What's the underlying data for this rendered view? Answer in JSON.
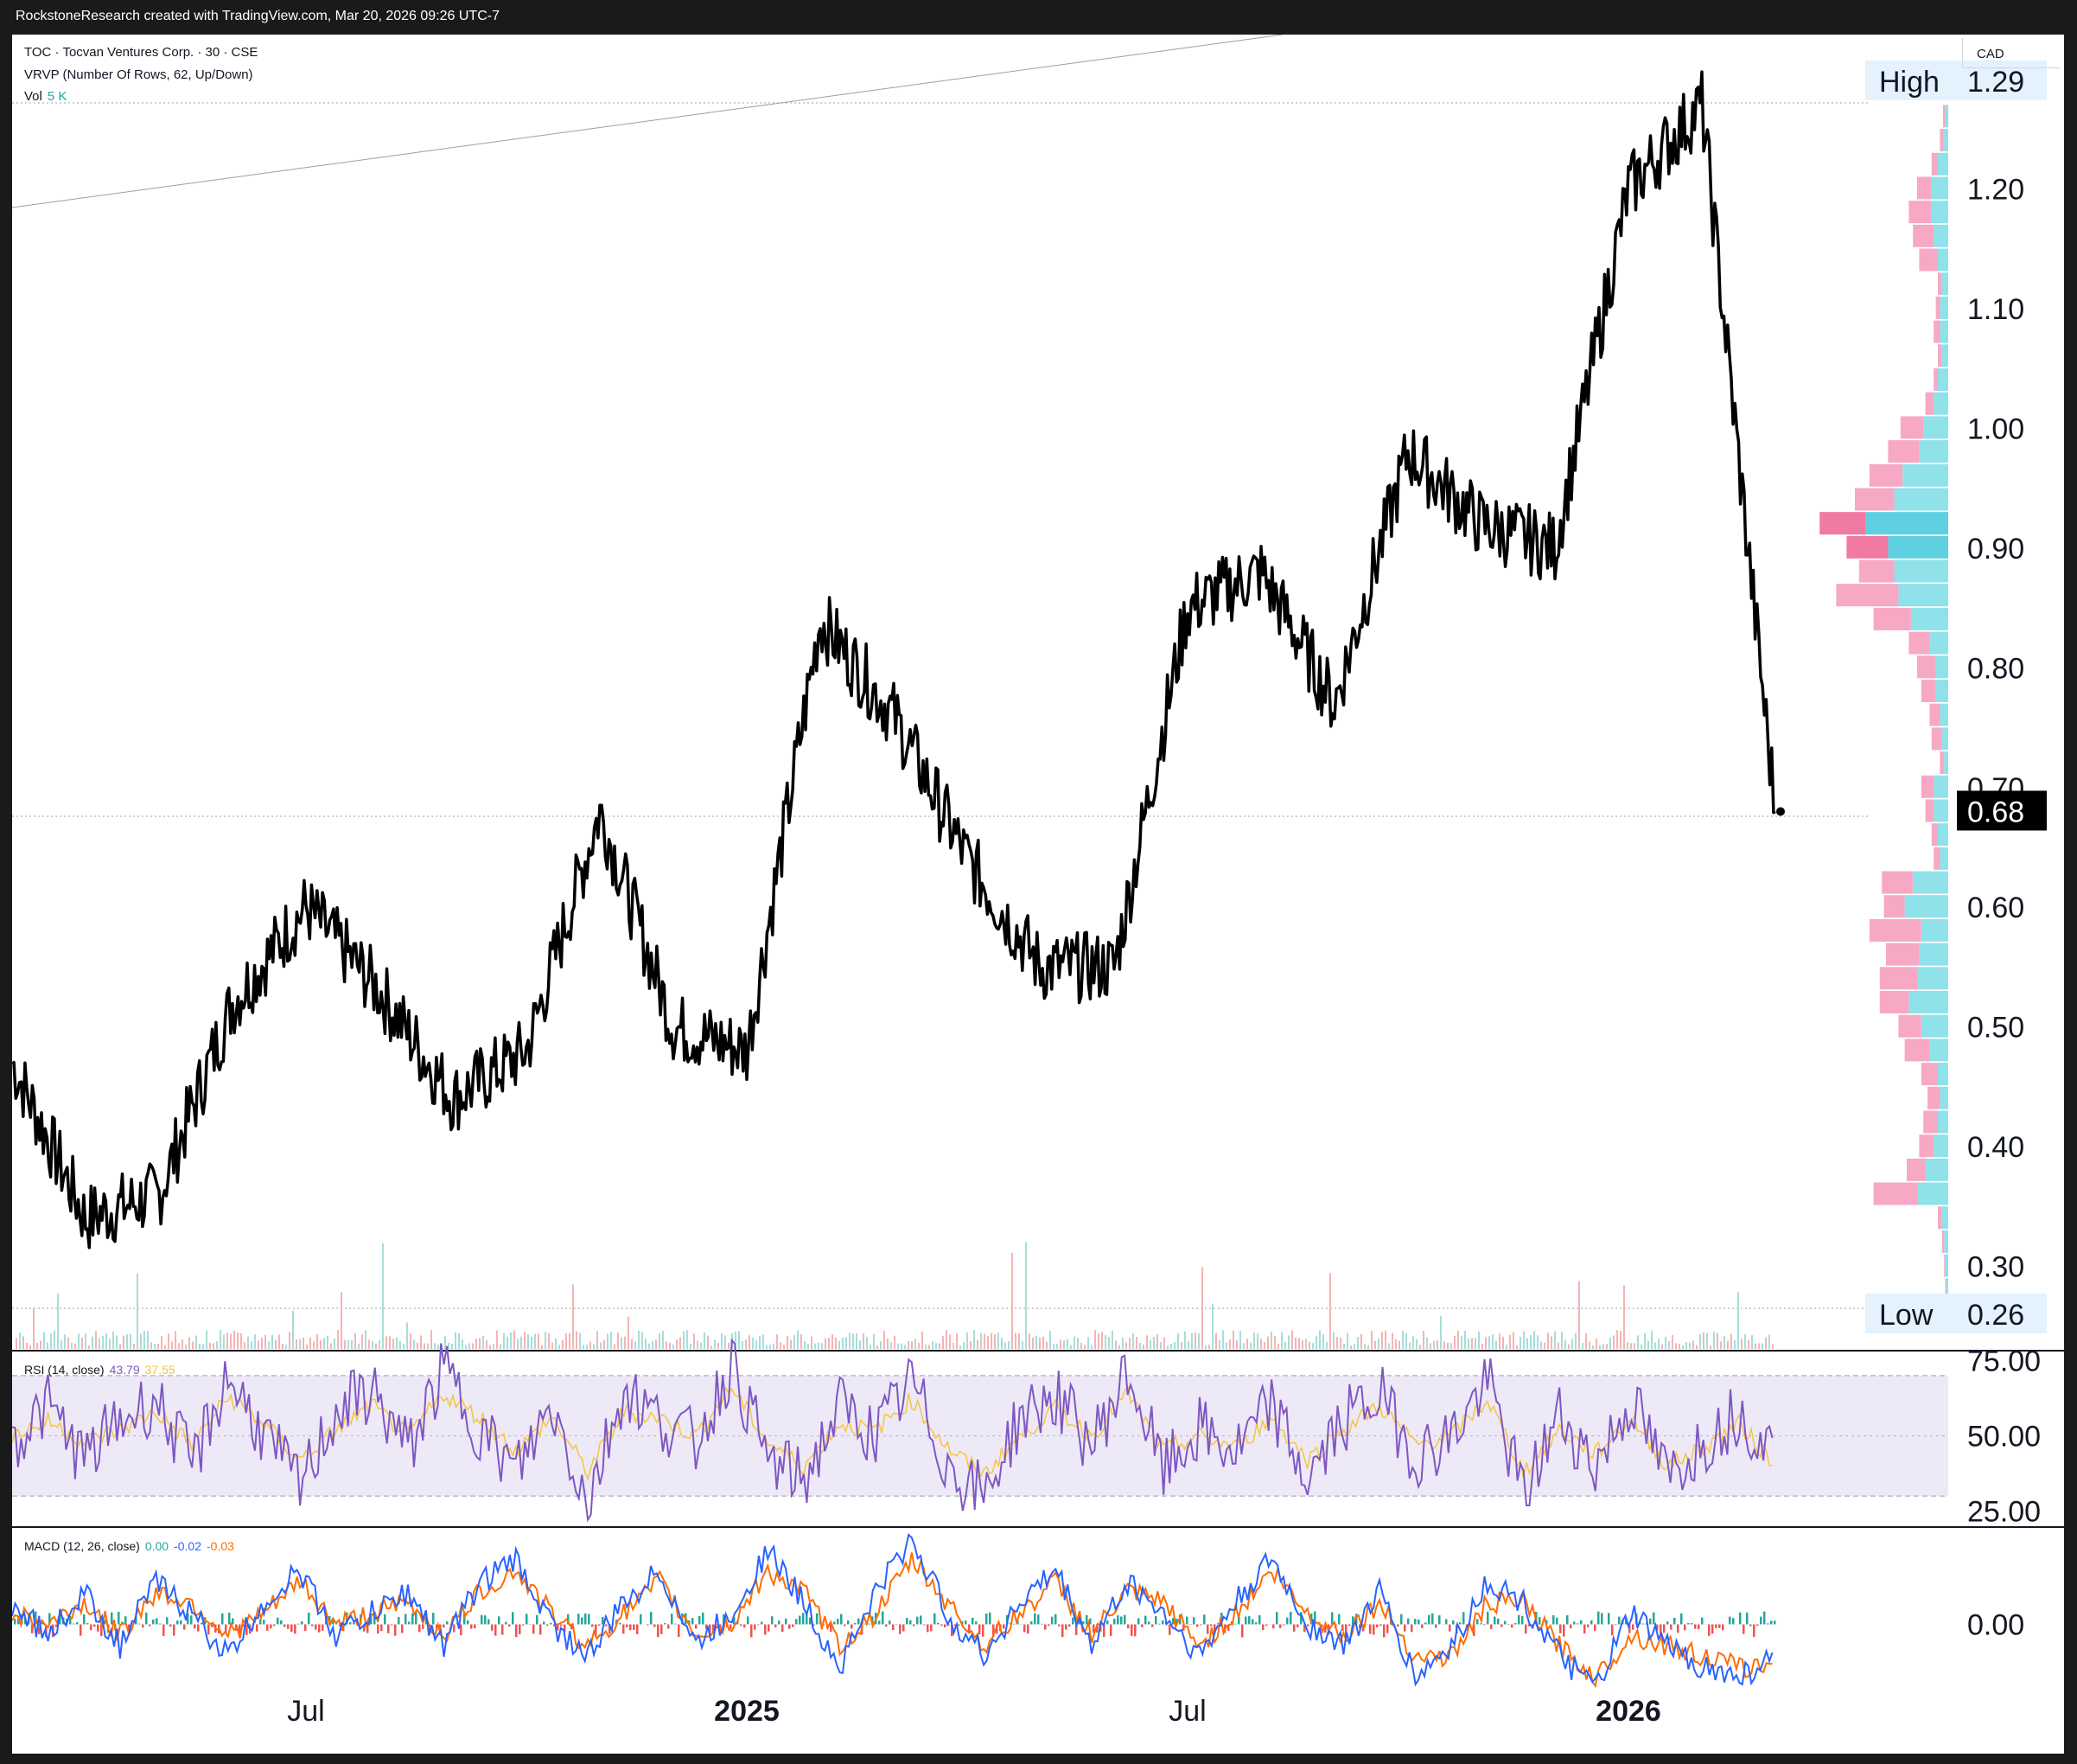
{
  "header": {
    "attribution": "RockstoneResearch created with TradingView.com, Mar 20, 2026 09:26 UTC-7"
  },
  "legend": {
    "symbol": "TOC · Tocvan Ventures Corp. · 30 · CSE",
    "vrvp": "VRVP (Number Of Rows, 62, Up/Down)",
    "vol_label": "Vol",
    "vol_value": "5 K"
  },
  "currency": "CAD",
  "colors": {
    "price": "#000000",
    "vp_up": "#8fe2ea",
    "vp_down": "#f7a8c4",
    "poc_up": "#5fd0e0",
    "poc_down": "#f07aa4",
    "rsi": "#7e57c2",
    "rsi_ma": "#f5c542",
    "rsi_band": "#ede9f7",
    "macd": "#2962ff",
    "signal": "#ff6d00",
    "hist_up": "#26a69a",
    "hist_down": "#ef5350"
  },
  "chart_data": [
    {
      "type": "line",
      "name": "price",
      "x_tick_labels": [
        "Jul",
        "2025",
        "Jul",
        "2026"
      ],
      "x": [
        "2024-03",
        "2024-04",
        "2024-05",
        "2024-06",
        "2024-07",
        "2024-08",
        "2024-09",
        "2024-10",
        "2024-11",
        "2024-12",
        "2025-01",
        "2025-02",
        "2025-03",
        "2025-04",
        "2025-05",
        "2025-06",
        "2025-07",
        "2025-08",
        "2025-09",
        "2025-10",
        "2025-11",
        "2025-12",
        "2026-01",
        "2026-02",
        "2026-03"
      ],
      "values": [
        0.47,
        0.34,
        0.36,
        0.52,
        0.6,
        0.53,
        0.44,
        0.48,
        0.68,
        0.5,
        0.48,
        0.84,
        0.76,
        0.64,
        0.55,
        0.55,
        0.85,
        0.88,
        0.77,
        0.98,
        0.92,
        0.9,
        1.2,
        1.27,
        0.68
      ],
      "y_ticks": [
        0.3,
        0.4,
        0.5,
        0.6,
        0.7,
        0.8,
        0.9,
        1.0,
        1.1,
        1.2
      ],
      "y_tick_labels": [
        "0.30",
        "0.40",
        "0.50",
        "0.60",
        "0.70",
        "0.80",
        "0.90",
        "1.00",
        "1.10",
        "1.20"
      ],
      "ylim": [
        0.26,
        1.3
      ],
      "high_label": "High",
      "high_value": "1.29",
      "low_label": "Low",
      "low_value": "0.26",
      "last_value": "0.68"
    },
    {
      "type": "bar",
      "name": "VRVP",
      "orientation": "horizontal",
      "price_levels": [
        1.26,
        1.24,
        1.22,
        1.2,
        1.18,
        1.16,
        1.14,
        1.12,
        1.1,
        1.08,
        1.06,
        1.04,
        1.02,
        1.0,
        0.98,
        0.96,
        0.94,
        0.92,
        0.9,
        0.88,
        0.86,
        0.84,
        0.82,
        0.8,
        0.78,
        0.76,
        0.74,
        0.72,
        0.7,
        0.68,
        0.66,
        0.64,
        0.62,
        0.6,
        0.58,
        0.56,
        0.54,
        0.52,
        0.5,
        0.48,
        0.46,
        0.44,
        0.42,
        0.4,
        0.38,
        0.36,
        0.34,
        0.32,
        0.3,
        0.28
      ],
      "up_volume": [
        3,
        5,
        10,
        16,
        16,
        14,
        10,
        6,
        8,
        8,
        6,
        10,
        14,
        24,
        28,
        44,
        52,
        80,
        58,
        52,
        48,
        36,
        18,
        12,
        12,
        8,
        6,
        4,
        14,
        14,
        10,
        8,
        34,
        42,
        26,
        28,
        30,
        38,
        26,
        18,
        10,
        8,
        10,
        14,
        22,
        30,
        6,
        4,
        3,
        2
      ],
      "down_volume": [
        2,
        3,
        6,
        14,
        22,
        20,
        18,
        4,
        4,
        6,
        4,
        4,
        8,
        22,
        30,
        32,
        38,
        44,
        40,
        34,
        60,
        36,
        20,
        18,
        14,
        10,
        10,
        4,
        12,
        8,
        6,
        6,
        30,
        20,
        50,
        32,
        36,
        28,
        22,
        24,
        16,
        12,
        14,
        14,
        18,
        42,
        4,
        2,
        1,
        1
      ],
      "poc_level": 0.91
    },
    {
      "type": "line",
      "name": "RSI (14, close)",
      "legend_label": "RSI (14, close)",
      "legend_value_1": "43.79",
      "legend_value_2": "37.55",
      "values": [
        48,
        60,
        42,
        55,
        62,
        40,
        70,
        50,
        33,
        58,
        65,
        45,
        72,
        52,
        38,
        60,
        28,
        66,
        55,
        48,
        74,
        42,
        35,
        60,
        50,
        68,
        40,
        30,
        56,
        63,
        47,
        71,
        38,
        52,
        44,
        60,
        35,
        55,
        64,
        43,
        50,
        68,
        30,
        57,
        40,
        62,
        36,
        48,
        58,
        44
      ],
      "signal": [
        50,
        55,
        48,
        52,
        58,
        47,
        63,
        54,
        42,
        52,
        60,
        50,
        64,
        56,
        45,
        56,
        38,
        58,
        56,
        50,
        66,
        48,
        40,
        54,
        52,
        62,
        46,
        37,
        50,
        59,
        50,
        64,
        45,
        50,
        46,
        56,
        42,
        52,
        60,
        47,
        50,
        62,
        38,
        52,
        44,
        56,
        40,
        46,
        54,
        40
      ],
      "y_ticks": [
        25,
        50,
        75
      ],
      "y_tick_labels": [
        "25.00",
        "50.00",
        "75.00"
      ],
      "ylim": [
        20,
        78
      ],
      "band": [
        30,
        70
      ]
    },
    {
      "type": "line",
      "name": "MACD (12, 26, close)",
      "legend_label": "MACD (12, 26, close)",
      "legend_value_1": "0.00",
      "legend_value_2": "-0.02",
      "legend_value_3": "-0.03",
      "macd": [
        0.02,
        -0.01,
        0.03,
        -0.02,
        0.04,
        0.01,
        -0.03,
        0.02,
        0.05,
        -0.01,
        0.01,
        0.03,
        -0.02,
        0.04,
        0.06,
        0.0,
        -0.03,
        0.02,
        0.05,
        -0.02,
        0.01,
        0.07,
        0.02,
        -0.04,
        0.03,
        0.08,
        0.01,
        -0.03,
        0.02,
        0.05,
        -0.02,
        0.04,
        0.01,
        -0.03,
        0.02,
        0.06,
        0.0,
        -0.02,
        0.03,
        -0.05,
        -0.02,
        0.04,
        0.02,
        -0.03,
        -0.06,
        0.01,
        -0.02,
        -0.04,
        -0.05,
        -0.03
      ],
      "signal": [
        0.01,
        0.0,
        0.02,
        -0.01,
        0.03,
        0.02,
        -0.01,
        0.01,
        0.04,
        0.0,
        0.01,
        0.02,
        -0.01,
        0.03,
        0.05,
        0.01,
        -0.02,
        0.01,
        0.04,
        -0.01,
        0.0,
        0.05,
        0.03,
        -0.02,
        0.01,
        0.06,
        0.02,
        -0.02,
        0.01,
        0.04,
        -0.01,
        0.03,
        0.02,
        -0.02,
        0.01,
        0.05,
        0.01,
        -0.01,
        0.02,
        -0.03,
        -0.03,
        0.02,
        0.02,
        -0.02,
        -0.05,
        -0.01,
        -0.02,
        -0.03,
        -0.04,
        -0.04
      ],
      "y_ticks": [
        0.0
      ],
      "y_tick_labels": [
        "0.00"
      ],
      "ylim": [
        -0.09,
        0.09
      ]
    }
  ]
}
